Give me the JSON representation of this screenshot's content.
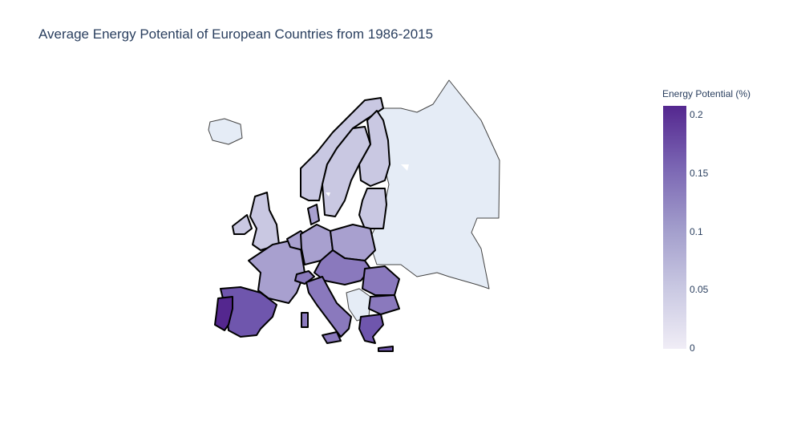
{
  "title": "Average Energy Potential of European Countries from 1986-2015",
  "colorbar": {
    "title": "Energy Potential (%)",
    "ticks": [
      "0.2",
      "0.15",
      "0.1",
      "0.05",
      "0"
    ],
    "colorscale": [
      "#f0edf6",
      "#c9c8e2",
      "#a19ccb",
      "#7a65b3",
      "#54278f"
    ]
  },
  "map_colors": {
    "no_data": "#e5ecf6",
    "level_low": "#c9c8e2",
    "level_mid": "#a8a0cf",
    "level_midhigh": "#8a79bd",
    "level_high": "#6f56ad",
    "level_max": "#54278f"
  }
}
